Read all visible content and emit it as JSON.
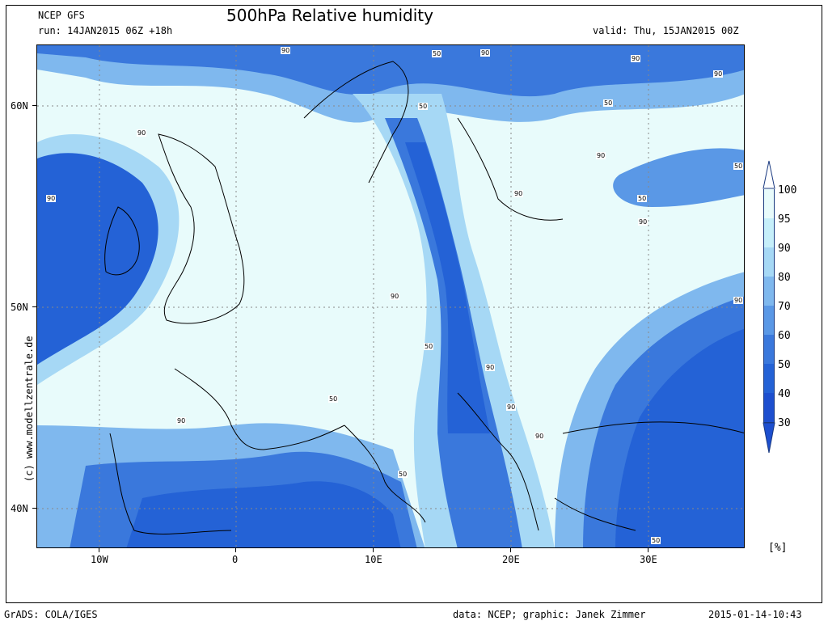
{
  "header": {
    "model": "NCEP GFS",
    "run": "run: 14JAN2015 06Z +18h",
    "title": "500hPa Relative humidity",
    "valid": "valid: Thu, 15JAN2015 00Z"
  },
  "map": {
    "region": "Europe",
    "lat_labels": [
      "60N",
      "50N",
      "40N"
    ],
    "lon_labels": [
      "10W",
      "0",
      "10E",
      "20E",
      "30E"
    ],
    "contour_labels": [
      "90",
      "50",
      "90",
      "90",
      "50",
      "90",
      "90",
      "50",
      "90",
      "50",
      "90",
      "90",
      "50",
      "90",
      "90",
      "90",
      "50",
      "90",
      "50",
      "90",
      "90",
      "90",
      "50",
      "50",
      "90",
      "50",
      "90",
      "50",
      "90",
      "50",
      "50"
    ]
  },
  "colorbar": {
    "unit": "[%]",
    "levels": [
      "100",
      "95",
      "90",
      "80",
      "70",
      "60",
      "50",
      "40",
      "30"
    ],
    "colors": [
      "#ffffff",
      "#e8fbfb",
      "#c6effa",
      "#a6d8f5",
      "#7fb8ee",
      "#5a98e6",
      "#3a78dc",
      "#2462d6",
      "#1d4fcf"
    ]
  },
  "footer": {
    "software": "GrADS: COLA/IGES",
    "credit": "data: NCEP; graphic: Janek Zimmer",
    "timestamp": "2015-01-14-10:43",
    "copyright": "(c)  www.modellzentrale.de"
  }
}
